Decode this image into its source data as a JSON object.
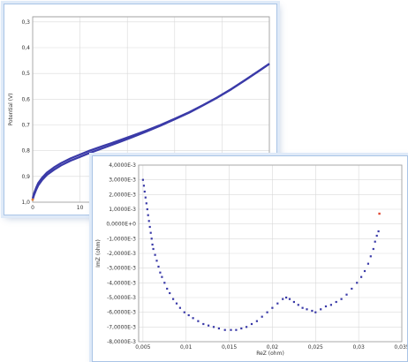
{
  "chart_data": [
    {
      "type": "line",
      "title": "",
      "xlabel": "",
      "ylabel": "Potential (V)",
      "xlim": [
        0,
        50
      ],
      "ylim": [
        0.28,
        1.0
      ],
      "x_ticks": [
        0,
        10
      ],
      "x_tick_labels": [
        "0",
        "10"
      ],
      "y_ticks": [
        1.0,
        0.9,
        0.8,
        0.7,
        0.6,
        0.5,
        0.4,
        0.3
      ],
      "y_tick_labels": [
        "1,0",
        "0,9",
        "0,8",
        "0,7",
        "0,6",
        "0,5",
        "0,4",
        "0,3"
      ],
      "grid": true,
      "colors": {
        "line": "#3a3aa8",
        "start_marker": "#e07a2f"
      },
      "series": [
        {
          "x": [
            0,
            0.3,
            0.7,
            1.2,
            2,
            3,
            4.5,
            6,
            8,
            10,
            12,
            15,
            18,
            21,
            24,
            27,
            30,
            33,
            36,
            39,
            42,
            45,
            48,
            50
          ],
          "y": [
            0.985,
            0.965,
            0.945,
            0.925,
            0.905,
            0.885,
            0.865,
            0.848,
            0.83,
            0.815,
            0.8,
            0.781,
            0.762,
            0.742,
            0.722,
            0.7,
            0.676,
            0.651,
            0.623,
            0.593,
            0.56,
            0.524,
            0.487,
            0.462
          ]
        },
        {
          "x": [
            0,
            0.3,
            0.7,
            1.2,
            2,
            3,
            4.5,
            6,
            8,
            10,
            12,
            15,
            18,
            21,
            24,
            27,
            30,
            33,
            36,
            39,
            42,
            45,
            48,
            50
          ],
          "y": [
            0.99,
            0.972,
            0.953,
            0.934,
            0.914,
            0.894,
            0.874,
            0.857,
            0.839,
            0.824,
            0.809,
            0.789,
            0.769,
            0.748,
            0.726,
            0.703,
            0.678,
            0.653,
            0.624,
            0.594,
            0.561,
            0.525,
            0.488,
            0.463
          ]
        }
      ]
    },
    {
      "type": "scatter",
      "title": "",
      "xlabel": "ReZ (ohm)",
      "ylabel": "ImZ (ohm)",
      "xlim": [
        0.0045,
        0.035
      ],
      "ylim": [
        0.004,
        -0.008
      ],
      "x_ticks": [
        0.005,
        0.01,
        0.015,
        0.02,
        0.025,
        0.03,
        0.035
      ],
      "x_tick_labels": [
        "0,005",
        "0,01",
        "0,015",
        "0,02",
        "0,025",
        "0,03",
        "0,035"
      ],
      "y_ticks": [
        -0.008,
        -0.007,
        -0.006,
        -0.005,
        -0.004,
        -0.003,
        -0.002,
        -0.001,
        0,
        0.001,
        0.002,
        0.003,
        0.004
      ],
      "y_tick_labels": [
        "-8,0000E-3",
        "-7,0000E-3",
        "-6,0000E-3",
        "-5,0000E-3",
        "-4,0000E-3",
        "-3,0000E-3",
        "-2,0000E-3",
        "-1,0000E-3",
        "0,0000E+0",
        "1,0000E-3",
        "2,0000E-3",
        "3,0000E-3",
        "4,0000E-3"
      ],
      "grid": true,
      "colors": {
        "points": "#3a3aa8",
        "highlight": "#e0452f"
      },
      "series": [
        {
          "x": [
            0.005,
            0.0051,
            0.0052,
            0.0053,
            0.0054,
            0.0055,
            0.0056,
            0.0057,
            0.0058,
            0.0059,
            0.006,
            0.0061,
            0.0062,
            0.0064,
            0.0066,
            0.0068,
            0.007,
            0.0072,
            0.0075,
            0.0078,
            0.0081,
            0.0085,
            0.0089,
            0.0093,
            0.0098,
            0.0103,
            0.0108,
            0.0114,
            0.012,
            0.0126,
            0.0132,
            0.0138,
            0.0145,
            0.0152,
            0.0158,
            0.0164,
            0.017,
            0.0176,
            0.0182,
            0.0188,
            0.0194,
            0.02,
            0.0206,
            0.0212,
            0.0216,
            0.022,
            0.0225,
            0.023,
            0.0235,
            0.024,
            0.0246,
            0.025,
            0.0256,
            0.0262,
            0.0268,
            0.0274,
            0.028,
            0.0286,
            0.0292,
            0.0298,
            0.0303,
            0.0307,
            0.0311,
            0.0314,
            0.0317,
            0.0319,
            0.0321,
            0.0323
          ],
          "y": [
            0.003,
            0.0026,
            0.0022,
            0.0018,
            0.0014,
            0.001,
            0.0006,
            0.0002,
            -0.0002,
            -0.0006,
            -0.001,
            -0.0014,
            -0.0017,
            -0.0021,
            -0.0025,
            -0.0029,
            -0.0033,
            -0.0036,
            -0.004,
            -0.0044,
            -0.0047,
            -0.0051,
            -0.0054,
            -0.0057,
            -0.006,
            -0.0062,
            -0.0064,
            -0.0066,
            -0.0068,
            -0.0069,
            -0.007,
            -0.0071,
            -0.0072,
            -0.0072,
            -0.0072,
            -0.0071,
            -0.007,
            -0.0068,
            -0.0066,
            -0.0063,
            -0.006,
            -0.0057,
            -0.0054,
            -0.0051,
            -0.005,
            -0.0051,
            -0.0053,
            -0.0055,
            -0.0057,
            -0.0058,
            -0.0059,
            -0.006,
            -0.0058,
            -0.0056,
            -0.0055,
            -0.0053,
            -0.0051,
            -0.0048,
            -0.0044,
            -0.004,
            -0.0036,
            -0.0032,
            -0.0027,
            -0.0022,
            -0.0017,
            -0.0012,
            -0.0008,
            -0.0005
          ]
        },
        {
          "x": [
            0.0324
          ],
          "y": [
            0.0007
          ]
        }
      ]
    }
  ]
}
